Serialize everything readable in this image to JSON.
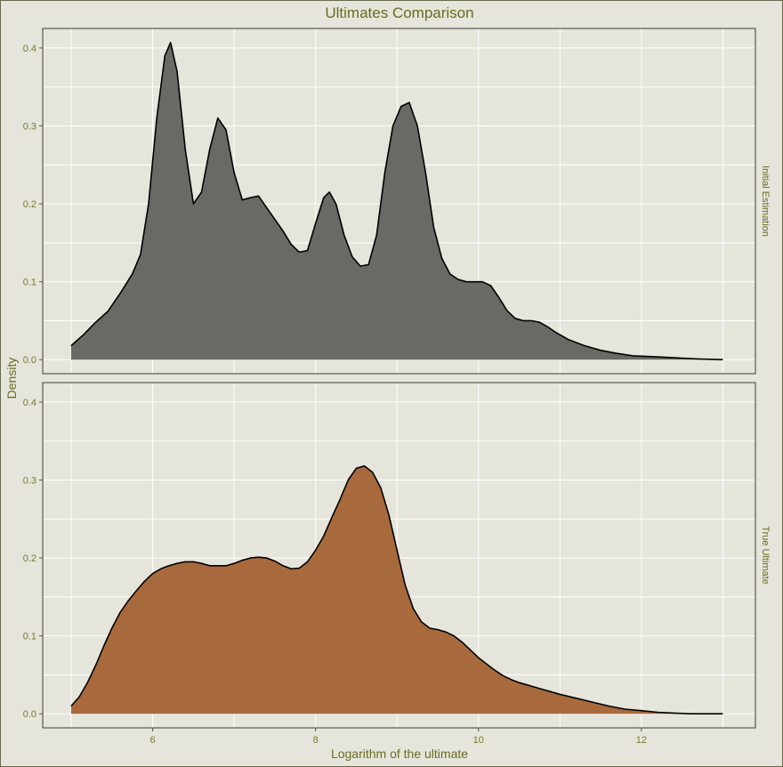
{
  "chart_data": {
    "type": "area",
    "title": "Ultimates Comparison",
    "xlabel": "Logarithm of the ultimate",
    "ylabel": "Density",
    "xlim": [
      4.65,
      13.4
    ],
    "ylim": [
      -0.018,
      0.425
    ],
    "x_ticks": [
      6,
      8,
      10,
      12
    ],
    "y_ticks": [
      0.0,
      0.1,
      0.2,
      0.3,
      0.4
    ],
    "y_tick_labels": [
      "0.0",
      "0.1",
      "0.2",
      "0.3",
      "0.4"
    ],
    "grid": true,
    "panels": [
      {
        "strip": "Initial Estimation",
        "fill": "#6b6966",
        "x": [
          5.0,
          5.15,
          5.3,
          5.45,
          5.6,
          5.75,
          5.85,
          5.95,
          6.05,
          6.15,
          6.22,
          6.3,
          6.4,
          6.5,
          6.6,
          6.7,
          6.8,
          6.9,
          7.0,
          7.1,
          7.2,
          7.3,
          7.4,
          7.5,
          7.6,
          7.7,
          7.8,
          7.9,
          8.0,
          8.1,
          8.17,
          8.25,
          8.35,
          8.45,
          8.55,
          8.65,
          8.75,
          8.85,
          8.95,
          9.05,
          9.15,
          9.25,
          9.35,
          9.45,
          9.55,
          9.65,
          9.75,
          9.85,
          9.95,
          10.05,
          10.15,
          10.25,
          10.35,
          10.45,
          10.55,
          10.65,
          10.75,
          10.85,
          10.95,
          11.1,
          11.3,
          11.5,
          11.7,
          11.9,
          12.1,
          12.3,
          12.5,
          12.7,
          13.0
        ],
        "y": [
          0.018,
          0.032,
          0.048,
          0.062,
          0.085,
          0.11,
          0.135,
          0.2,
          0.31,
          0.39,
          0.407,
          0.37,
          0.27,
          0.2,
          0.215,
          0.27,
          0.31,
          0.295,
          0.24,
          0.205,
          0.208,
          0.21,
          0.195,
          0.18,
          0.165,
          0.148,
          0.138,
          0.14,
          0.175,
          0.208,
          0.215,
          0.2,
          0.16,
          0.132,
          0.12,
          0.122,
          0.16,
          0.24,
          0.3,
          0.325,
          0.33,
          0.3,
          0.24,
          0.17,
          0.13,
          0.11,
          0.103,
          0.1,
          0.1,
          0.1,
          0.095,
          0.08,
          0.063,
          0.053,
          0.05,
          0.05,
          0.048,
          0.042,
          0.035,
          0.026,
          0.018,
          0.012,
          0.008,
          0.005,
          0.004,
          0.003,
          0.002,
          0.001,
          0.0
        ]
      },
      {
        "strip": "True Ultimate",
        "fill": "#a86a3c",
        "x": [
          5.0,
          5.1,
          5.2,
          5.3,
          5.4,
          5.5,
          5.6,
          5.7,
          5.8,
          5.9,
          6.0,
          6.1,
          6.2,
          6.3,
          6.4,
          6.5,
          6.6,
          6.7,
          6.8,
          6.9,
          7.0,
          7.1,
          7.2,
          7.3,
          7.4,
          7.5,
          7.6,
          7.7,
          7.8,
          7.9,
          8.0,
          8.1,
          8.2,
          8.3,
          8.4,
          8.5,
          8.6,
          8.7,
          8.8,
          8.9,
          9.0,
          9.1,
          9.2,
          9.3,
          9.4,
          9.5,
          9.6,
          9.7,
          9.8,
          9.9,
          10.0,
          10.1,
          10.2,
          10.3,
          10.4,
          10.5,
          10.6,
          10.7,
          10.8,
          10.9,
          11.0,
          11.2,
          11.4,
          11.6,
          11.8,
          12.0,
          12.2,
          12.4,
          12.6,
          12.8,
          13.0
        ],
        "y": [
          0.01,
          0.022,
          0.04,
          0.062,
          0.087,
          0.11,
          0.13,
          0.145,
          0.158,
          0.17,
          0.18,
          0.186,
          0.19,
          0.193,
          0.195,
          0.195,
          0.193,
          0.19,
          0.19,
          0.19,
          0.193,
          0.197,
          0.2,
          0.201,
          0.2,
          0.196,
          0.19,
          0.186,
          0.187,
          0.195,
          0.21,
          0.228,
          0.252,
          0.275,
          0.3,
          0.315,
          0.318,
          0.31,
          0.29,
          0.255,
          0.21,
          0.165,
          0.135,
          0.118,
          0.11,
          0.108,
          0.105,
          0.1,
          0.092,
          0.082,
          0.072,
          0.064,
          0.056,
          0.049,
          0.044,
          0.04,
          0.037,
          0.034,
          0.031,
          0.028,
          0.025,
          0.02,
          0.015,
          0.01,
          0.006,
          0.004,
          0.002,
          0.001,
          0.0,
          0.0,
          0.0
        ]
      }
    ]
  }
}
